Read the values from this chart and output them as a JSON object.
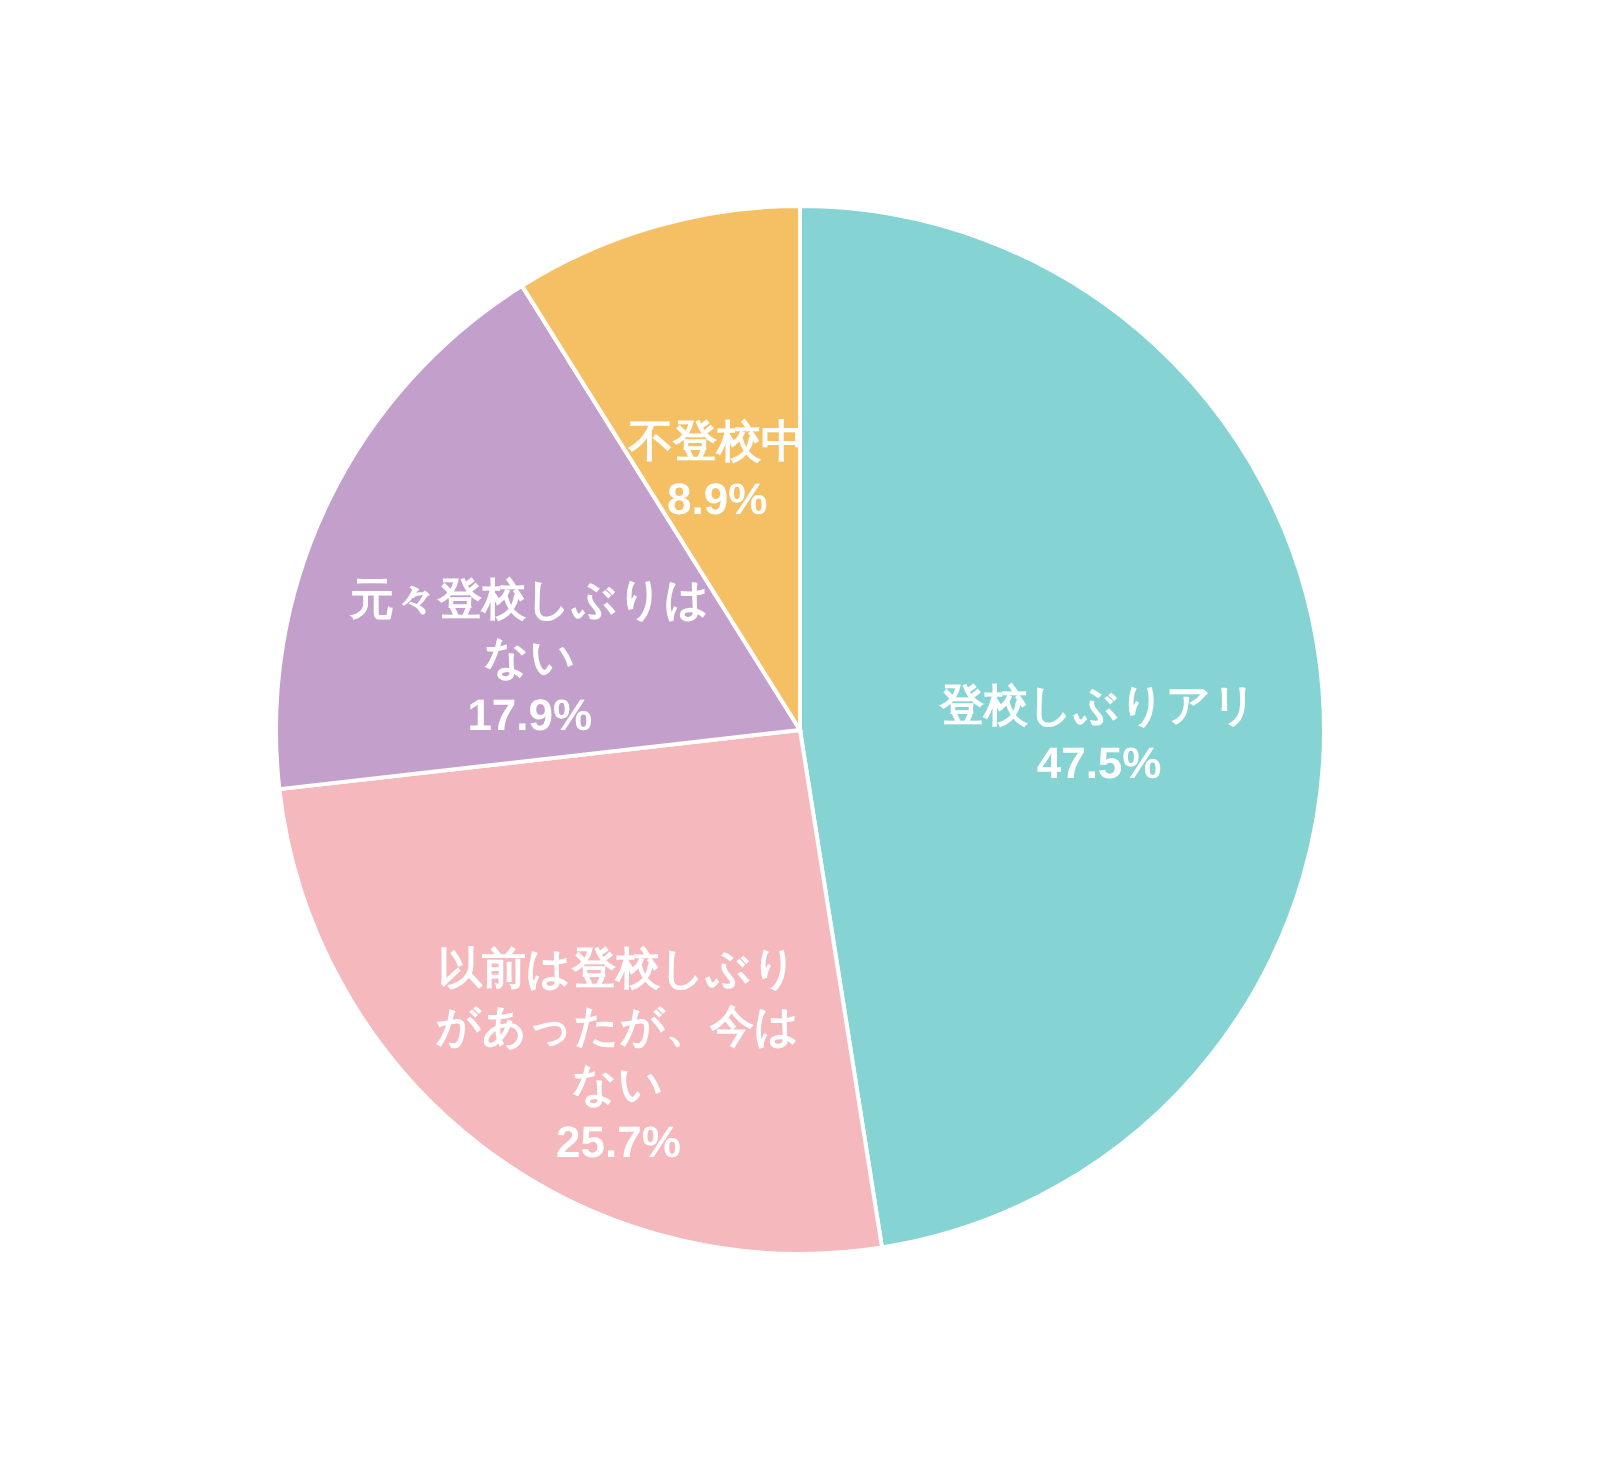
{
  "chart_data": {
    "type": "pie",
    "categories": [
      "登校しぶりアリ",
      "以前は登校しぶりがあったが、今はない",
      "元々登校しぶりはない",
      "不登校中"
    ],
    "values": [
      47.5,
      25.7,
      17.9,
      8.9
    ],
    "colors": [
      "#85d3d3",
      "#f4b8bd",
      "#c3a0cb",
      "#f5c064"
    ],
    "value_labels": [
      "47.5%",
      "25.7%",
      "17.9%",
      "8.9%"
    ]
  }
}
